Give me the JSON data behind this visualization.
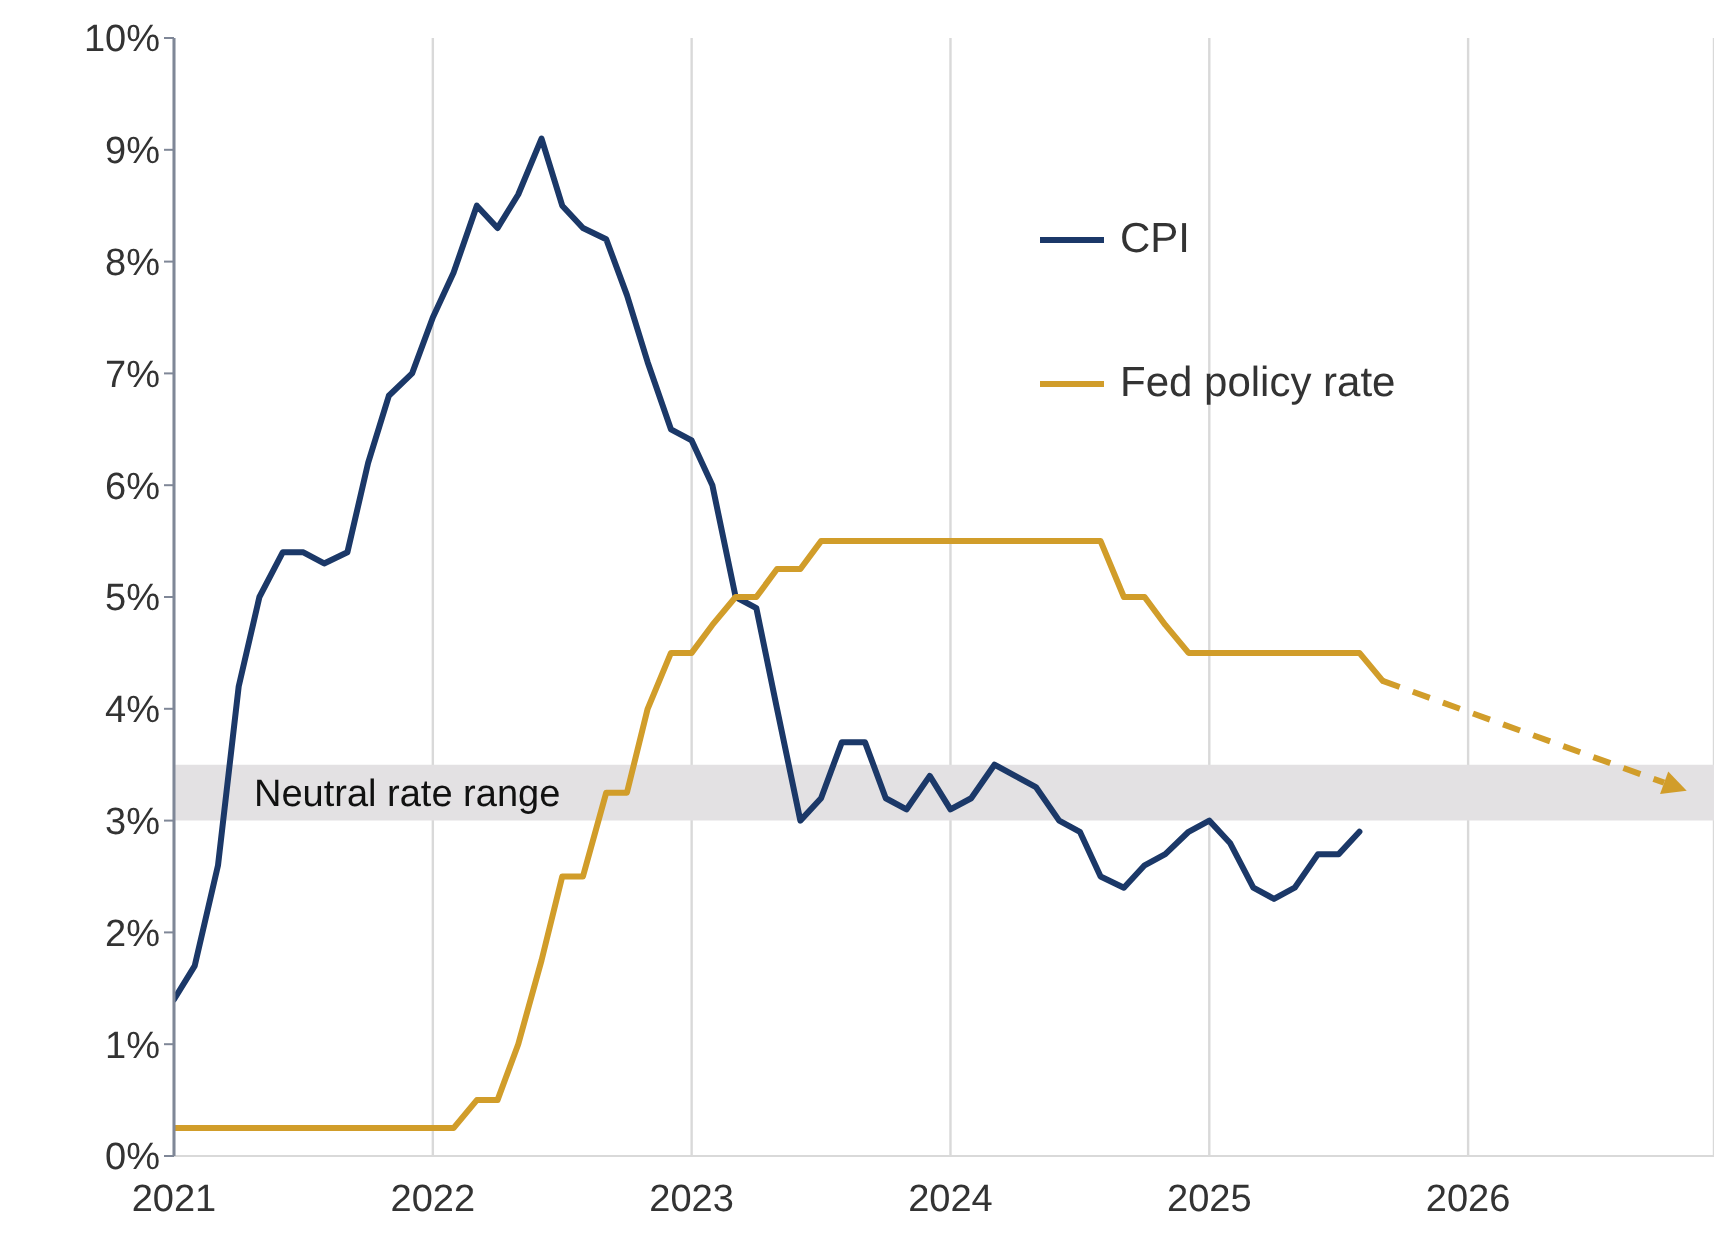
{
  "chart_data": {
    "type": "line",
    "xlim": [
      2021,
      2026.95
    ],
    "xticks": [
      2021,
      2022,
      2023,
      2024,
      2025,
      2026
    ],
    "ylim": [
      0,
      10
    ],
    "yticks": [
      {
        "value": 0,
        "label": "0%"
      },
      {
        "value": 1,
        "label": "1%"
      },
      {
        "value": 2,
        "label": "2%"
      },
      {
        "value": 3,
        "label": "3%"
      },
      {
        "value": 4,
        "label": "4%"
      },
      {
        "value": 5,
        "label": "5%"
      },
      {
        "value": 6,
        "label": "6%"
      },
      {
        "value": 7,
        "label": "7%"
      },
      {
        "value": 8,
        "label": "8%"
      },
      {
        "value": 9,
        "label": "9%"
      },
      {
        "value": 10,
        "label": "10%"
      }
    ],
    "grid": "x",
    "legend": "top right",
    "bands": [
      {
        "axis": "y",
        "from": 3,
        "to": 3.5,
        "label": "Neutral rate range",
        "color": "#e3e1e3"
      }
    ],
    "series": [
      {
        "name": "CPI",
        "color": "#1b3868",
        "x": [
          2021,
          2021.08,
          2021.17,
          2021.25,
          2021.33,
          2021.42,
          2021.5,
          2021.58,
          2021.67,
          2021.75,
          2021.83,
          2021.92,
          2022,
          2022.08,
          2022.17,
          2022.25,
          2022.33,
          2022.42,
          2022.5,
          2022.58,
          2022.67,
          2022.75,
          2022.83,
          2022.92,
          2023,
          2023.08,
          2023.17,
          2023.25,
          2023.33,
          2023.42,
          2023.5,
          2023.58,
          2023.67,
          2023.75,
          2023.83,
          2023.92,
          2024,
          2024.08,
          2024.17,
          2024.25,
          2024.33,
          2024.42,
          2024.5,
          2024.58,
          2024.67,
          2024.75,
          2024.83,
          2024.92,
          2025,
          2025.08,
          2025.17,
          2025.25,
          2025.33,
          2025.42,
          2025.5,
          2025.58
        ],
        "values": [
          1.4,
          1.7,
          2.6,
          4.2,
          5.0,
          5.4,
          5.4,
          5.3,
          5.4,
          6.2,
          6.8,
          7.0,
          7.5,
          7.9,
          8.5,
          8.3,
          8.6,
          9.1,
          8.5,
          8.3,
          8.2,
          7.7,
          7.1,
          6.5,
          6.4,
          6.0,
          5.0,
          4.9,
          4.0,
          3.0,
          3.2,
          3.7,
          3.7,
          3.2,
          3.1,
          3.4,
          3.1,
          3.2,
          3.5,
          3.4,
          3.3,
          3.0,
          2.9,
          2.5,
          2.4,
          2.6,
          2.7,
          2.9,
          3.0,
          2.8,
          2.4,
          2.3,
          2.4,
          2.7,
          2.7,
          2.9
        ]
      },
      {
        "name": "Fed policy rate",
        "color": "#d19d2a",
        "x": [
          2021,
          2021.5,
          2022,
          2022.08,
          2022.17,
          2022.25,
          2022.33,
          2022.42,
          2022.5,
          2022.58,
          2022.67,
          2022.75,
          2022.83,
          2022.92,
          2023,
          2023.08,
          2023.17,
          2023.25,
          2023.33,
          2023.42,
          2023.5,
          2024,
          2024.58,
          2024.67,
          2024.75,
          2024.83,
          2024.92,
          2025,
          2025.58,
          2025.67
        ],
        "values": [
          0.25,
          0.25,
          0.25,
          0.25,
          0.5,
          0.5,
          1.0,
          1.75,
          2.5,
          2.5,
          3.25,
          3.25,
          4.0,
          4.5,
          4.5,
          4.75,
          5.0,
          5.0,
          5.25,
          5.25,
          5.5,
          5.5,
          5.5,
          5.0,
          5.0,
          4.75,
          4.5,
          4.5,
          4.5,
          4.25
        ]
      }
    ]
  }
}
